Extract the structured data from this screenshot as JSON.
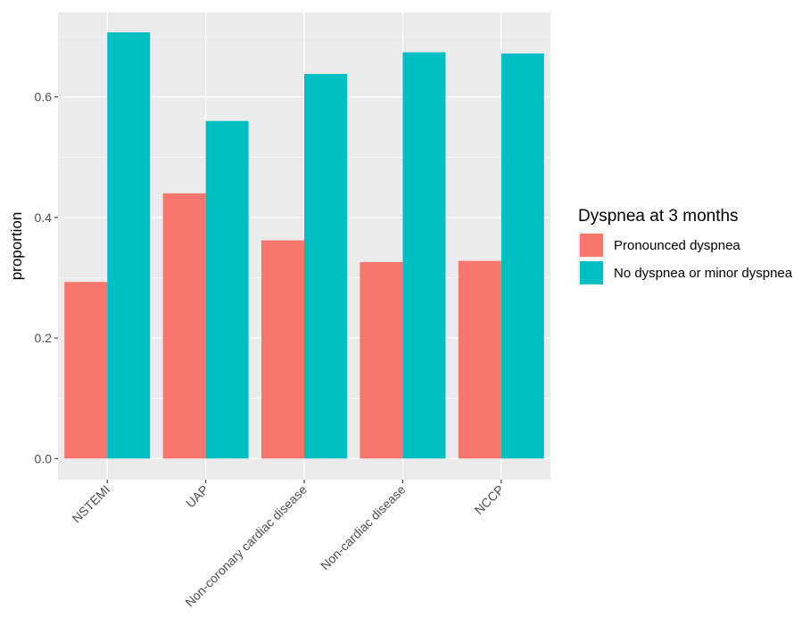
{
  "chart_data": {
    "type": "bar",
    "title": "",
    "xlabel": "",
    "ylabel": "proportion",
    "ylim": [
      -0.035,
      0.74
    ],
    "yticks": [
      "0.0",
      "0.2",
      "0.4",
      "0.6"
    ],
    "grid": true,
    "legend": {
      "title": "Dyspnea at 3 months",
      "position": "right"
    },
    "categories": [
      "NSTEMI",
      "UAP",
      "Non-coronary cardiac disease",
      "Non-cardiac disease",
      "NCCP"
    ],
    "series": [
      {
        "name": "Pronounced dyspnea",
        "color": "#F8766D",
        "values": [
          0.293,
          0.44,
          0.362,
          0.326,
          0.328
        ]
      },
      {
        "name": "No dyspnea or minor dyspnea",
        "color": "#00BFC4",
        "values": [
          0.707,
          0.56,
          0.638,
          0.674,
          0.672
        ]
      }
    ]
  }
}
